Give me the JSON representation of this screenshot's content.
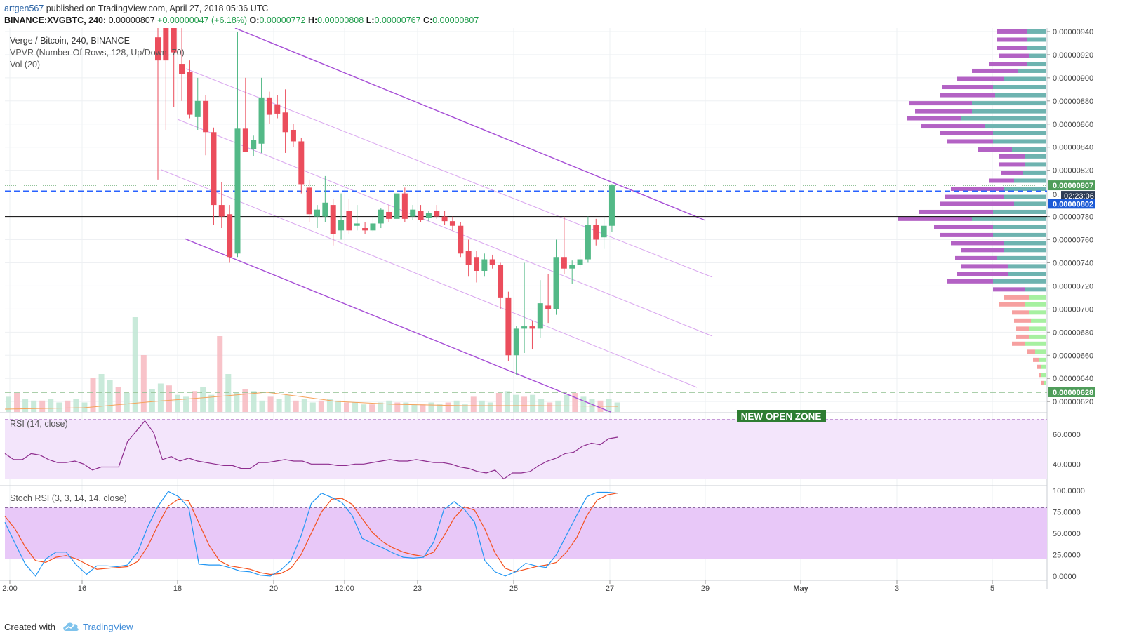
{
  "header": {
    "author": "artgen567",
    "published_text": " published on TradingView.com, April 27, 2018 05:36 UTC",
    "symbol": "BINANCE:XVGBTC, 240",
    "last": "0.00000807",
    "change": "+0.00000047 (+6.18%)",
    "o_label": "O:",
    "o_value": "0.00000772",
    "h_label": "H:",
    "h_value": "0.00000808",
    "l_label": "L:",
    "l_value": "0.00000767",
    "c_label": "C:",
    "c_value": "0.00000807"
  },
  "legend": {
    "title": "Verge / Bitcoin, 240, BINANCE",
    "vpvr": "VPVR (Number Of Rows, 128, Up/Down, 70)",
    "vol": "Vol (20)",
    "rsi": "RSI (14, close)",
    "stoch": "Stoch RSI (3, 3, 14, 14, close)"
  },
  "annotation": "NEW OPEN ZONE",
  "footer": {
    "created": "Created with",
    "brand": "TradingView"
  },
  "colors": {
    "up": "#53b987",
    "down": "#eb4d5c",
    "channel": "#a64ed6",
    "channel_inner": "#d9a6ef",
    "rsi": "#8e2d8e",
    "rsi_band": "#f3e5fb",
    "stoch_k": "#2196f3",
    "stoch_d": "#f4511e",
    "stoch_band": "#e8c8f8",
    "vpvr_up": "#6eb3b0",
    "vpvr_down": "#b362c4",
    "vpvr_up_low": "#a6f0a0",
    "vpvr_down_low": "#f6a0a0",
    "dash_blue": "#2962ff",
    "dash_green": "#8fbf8f",
    "label_green": "#4f9d5a",
    "label_blue": "#1c5ad6",
    "label_dark": "#2e3d55",
    "zone_bg": "#2e7d32"
  },
  "chart_data": {
    "type": "candlestick",
    "price_axis": {
      "ticks": [
        "0.00000940",
        "0.00000920",
        "0.00000900",
        "0.00000880",
        "0.00000860",
        "0.00000840",
        "0.00000820",
        "0.00000780",
        "0.00000760",
        "0.00000740",
        "0.00000720",
        "0.00000700",
        "0.00000680",
        "0.00000660",
        "0.00000640",
        "0.00000620"
      ],
      "ylim": [
        6.11e-06,
        9.43e-06
      ]
    },
    "time_axis": {
      "labels": [
        "2:00",
        "16",
        "18",
        "20",
        "12:00",
        "23",
        "25",
        "27",
        "29",
        "May",
        "3",
        "5"
      ]
    },
    "price_labels": {
      "last": "0.00000807",
      "countdown": "02:23:06",
      "blue_level": "0.00000802",
      "green_level": "0.00000628",
      "hidden_label": "0."
    },
    "levels": {
      "blue_dashed": 8.02e-06,
      "green_dashed": 6.28e-06,
      "black_line": 7.8e-06,
      "dotted_last": 8.07e-06
    },
    "candles": [
      {
        "o": 9.35e-06,
        "h": 9.43e-06,
        "l": 8.12e-06,
        "c": 9.15e-06
      },
      {
        "o": 9.45e-06,
        "h": 9.5e-06,
        "l": 8.55e-06,
        "c": 9.15e-06
      },
      {
        "o": 9.45e-06,
        "h": 9.5e-06,
        "l": 8.75e-06,
        "c": 9.22e-06
      },
      {
        "o": 9.12e-06,
        "h": 9.5e-06,
        "l": 8.8e-06,
        "c": 9.03e-06
      },
      {
        "o": 9.05e-06,
        "h": 9.15e-06,
        "l": 8.65e-06,
        "c": 8.68e-06
      },
      {
        "o": 8.66e-06,
        "h": 9e-06,
        "l": 8.55e-06,
        "c": 8.8e-06
      },
      {
        "o": 8.8e-06,
        "h": 8.85e-06,
        "l": 8.33e-06,
        "c": 8.53e-06
      },
      {
        "o": 8.53e-06,
        "h": 8.57e-06,
        "l": 7.73e-06,
        "c": 7.9e-06
      },
      {
        "o": 7.9e-06,
        "h": 8.1e-06,
        "l": 7.7e-06,
        "c": 7.8e-06
      },
      {
        "o": 7.82e-06,
        "h": 7.9e-06,
        "l": 7.4e-06,
        "c": 7.45e-06
      },
      {
        "o": 7.48e-06,
        "h": 9.4e-06,
        "l": 7.45e-06,
        "c": 8.56e-06
      },
      {
        "o": 8.56e-06,
        "h": 9e-06,
        "l": 8.38e-06,
        "c": 8.36e-06
      },
      {
        "o": 8.38e-06,
        "h": 8.5e-06,
        "l": 8.32e-06,
        "c": 8.46e-06
      },
      {
        "o": 8.43e-06,
        "h": 9e-06,
        "l": 8.35e-06,
        "c": 8.83e-06
      },
      {
        "o": 8.83e-06,
        "h": 8.88e-06,
        "l": 8.6e-06,
        "c": 8.68e-06
      },
      {
        "o": 8.77e-06,
        "h": 8.85e-06,
        "l": 8.65e-06,
        "c": 8.69e-06
      },
      {
        "o": 8.7e-06,
        "h": 8.9e-06,
        "l": 8.35e-06,
        "c": 8.53e-06
      },
      {
        "o": 8.55e-06,
        "h": 8.6e-06,
        "l": 8.4e-06,
        "c": 8.45e-06
      },
      {
        "o": 8.45e-06,
        "h": 8.48e-06,
        "l": 8e-06,
        "c": 8.08e-06
      },
      {
        "o": 8.05e-06,
        "h": 8.12e-06,
        "l": 7.75e-06,
        "c": 7.82e-06
      },
      {
        "o": 7.8e-06,
        "h": 7.9e-06,
        "l": 7.7e-06,
        "c": 7.86e-06
      },
      {
        "o": 7.8e-06,
        "h": 8.15e-06,
        "l": 7.75e-06,
        "c": 7.92e-06
      },
      {
        "o": 7.9e-06,
        "h": 7.95e-06,
        "l": 7.55e-06,
        "c": 7.65e-06
      },
      {
        "o": 7.68e-06,
        "h": 8e-06,
        "l": 7.6e-06,
        "c": 7.77e-06
      },
      {
        "o": 7.85e-06,
        "h": 7.95e-06,
        "l": 7.65e-06,
        "c": 7.68e-06
      },
      {
        "o": 7.72e-06,
        "h": 7.9e-06,
        "l": 7.68e-06,
        "c": 7.74e-06
      },
      {
        "o": 7.7e-06,
        "h": 7.75e-06,
        "l": 7.65e-06,
        "c": 7.68e-06
      },
      {
        "o": 7.68e-06,
        "h": 7.8e-06,
        "l": 7.67e-06,
        "c": 7.74e-06
      },
      {
        "o": 7.74e-06,
        "h": 7.87e-06,
        "l": 7.7e-06,
        "c": 7.86e-06
      },
      {
        "o": 7.84e-06,
        "h": 7.9e-06,
        "l": 7.75e-06,
        "c": 7.78e-06
      },
      {
        "o": 7.78e-06,
        "h": 8.18e-06,
        "l": 7.75e-06,
        "c": 8e-06
      },
      {
        "o": 8e-06,
        "h": 8.05e-06,
        "l": 7.75e-06,
        "c": 7.78e-06
      },
      {
        "o": 7.8e-06,
        "h": 7.9e-06,
        "l": 7.77e-06,
        "c": 7.86e-06
      },
      {
        "o": 7.85e-06,
        "h": 7.9e-06,
        "l": 7.75e-06,
        "c": 7.77e-06
      },
      {
        "o": 7.79e-06,
        "h": 7.85e-06,
        "l": 7.76e-06,
        "c": 7.83e-06
      },
      {
        "o": 7.85e-06,
        "h": 7.9e-06,
        "l": 7.78e-06,
        "c": 7.8e-06
      },
      {
        "o": 7.8e-06,
        "h": 7.85e-06,
        "l": 7.73e-06,
        "c": 7.76e-06
      },
      {
        "o": 7.76e-06,
        "h": 7.8e-06,
        "l": 7.68e-06,
        "c": 7.72e-06
      },
      {
        "o": 7.72e-06,
        "h": 7.75e-06,
        "l": 7.45e-06,
        "c": 7.48e-06
      },
      {
        "o": 7.5e-06,
        "h": 7.6e-06,
        "l": 7.28e-06,
        "c": 7.38e-06
      },
      {
        "o": 7.45e-06,
        "h": 7.5e-06,
        "l": 7.23e-06,
        "c": 7.33e-06
      },
      {
        "o": 7.33e-06,
        "h": 7.48e-06,
        "l": 7.28e-06,
        "c": 7.43e-06
      },
      {
        "o": 7.43e-06,
        "h": 7.47e-06,
        "l": 7.35e-06,
        "c": 7.38e-06
      },
      {
        "o": 7.38e-06,
        "h": 7.4e-06,
        "l": 7e-06,
        "c": 7.1e-06
      },
      {
        "o": 7.1e-06,
        "h": 7.15e-06,
        "l": 6.55e-06,
        "c": 6.6e-06
      },
      {
        "o": 6.6e-06,
        "h": 6.85e-06,
        "l": 6.43e-06,
        "c": 6.83e-06
      },
      {
        "o": 6.83e-06,
        "h": 7.4e-06,
        "l": 6.62e-06,
        "c": 6.85e-06
      },
      {
        "o": 6.85e-06,
        "h": 6.9e-06,
        "l": 6.65e-06,
        "c": 6.83e-06
      },
      {
        "o": 6.83e-06,
        "h": 7.25e-06,
        "l": 6.75e-06,
        "c": 7.05e-06
      },
      {
        "o": 7.03e-06,
        "h": 7.3e-06,
        "l": 6.88e-06,
        "c": 7e-06
      },
      {
        "o": 7e-06,
        "h": 7.6e-06,
        "l": 6.95e-06,
        "c": 7.45e-06
      },
      {
        "o": 7.45e-06,
        "h": 7.8e-06,
        "l": 7.3e-06,
        "c": 7.35e-06
      },
      {
        "o": 7.35e-06,
        "h": 7.42e-06,
        "l": 7.22e-06,
        "c": 7.38e-06
      },
      {
        "o": 7.38e-06,
        "h": 7.52e-06,
        "l": 7.35e-06,
        "c": 7.43e-06
      },
      {
        "o": 7.43e-06,
        "h": 7.8e-06,
        "l": 7.4e-06,
        "c": 7.73e-06
      },
      {
        "o": 7.73e-06,
        "h": 7.78e-06,
        "l": 7.55e-06,
        "c": 7.6e-06
      },
      {
        "o": 7.62e-06,
        "h": 7.8e-06,
        "l": 7.52e-06,
        "c": 7.72e-06
      },
      {
        "o": 7.72e-06,
        "h": 8.08e-06,
        "l": 7.67e-06,
        "c": 8.07e-06
      }
    ],
    "volume": [
      8,
      10,
      7,
      6,
      6,
      7,
      5,
      6,
      7,
      5,
      18,
      20,
      17,
      13,
      10,
      50,
      30,
      12,
      15,
      14,
      9,
      8,
      11,
      13,
      9,
      40,
      20,
      10,
      12,
      11,
      6,
      8,
      7,
      9,
      6,
      7,
      5,
      6,
      7,
      6,
      5,
      5,
      4,
      4,
      5,
      6,
      5,
      5,
      4,
      4,
      5,
      4,
      5,
      6,
      4,
      8,
      6,
      5,
      10,
      11,
      9,
      8,
      9,
      7,
      5,
      6,
      9,
      10,
      8,
      7,
      6,
      7,
      5
    ],
    "rsi": {
      "ylim": [
        26,
        74
      ],
      "ticks": [
        "60.0000",
        "40.0000"
      ],
      "band": [
        30,
        70
      ],
      "values": [
        47,
        43,
        43,
        47,
        46,
        43,
        41,
        41,
        42,
        40,
        36,
        38,
        38,
        38,
        55,
        62,
        69,
        61,
        43,
        45,
        42,
        44,
        42,
        41,
        40,
        39,
        39,
        37,
        37,
        41,
        41,
        42,
        43,
        42,
        42,
        40,
        40,
        40,
        39,
        39,
        40,
        40,
        41,
        42,
        43,
        42,
        42,
        43,
        42,
        41,
        41,
        40,
        38,
        37,
        35,
        34,
        36,
        30,
        34,
        34,
        35,
        39,
        42,
        44,
        47,
        48,
        52,
        54,
        53,
        57,
        58
      ]
    },
    "stoch_rsi": {
      "ylim": [
        -5,
        105
      ],
      "ticks": [
        "100.0000",
        "75.0000",
        "50.0000",
        "25.0000",
        "0.0000"
      ],
      "band": [
        20,
        80
      ],
      "k": [
        63,
        38,
        14,
        0,
        20,
        28,
        28,
        13,
        2,
        12,
        12,
        11,
        13,
        28,
        58,
        82,
        99,
        93,
        80,
        14,
        13,
        13,
        10,
        6,
        5,
        1,
        0,
        7,
        18,
        47,
        85,
        97,
        92,
        86,
        71,
        44,
        38,
        33,
        27,
        22,
        21,
        22,
        40,
        78,
        87,
        78,
        63,
        18,
        5,
        0,
        5,
        15,
        12,
        10,
        25,
        48,
        71,
        93,
        98,
        98,
        97
      ],
      "d": [
        70,
        55,
        34,
        18,
        16,
        22,
        24,
        20,
        14,
        8,
        9,
        10,
        11,
        17,
        35,
        60,
        82,
        90,
        88,
        62,
        36,
        18,
        12,
        10,
        8,
        4,
        2,
        3,
        9,
        25,
        50,
        75,
        90,
        91,
        84,
        67,
        51,
        40,
        33,
        28,
        25,
        23,
        28,
        47,
        68,
        81,
        77,
        55,
        27,
        9,
        5,
        8,
        11,
        13,
        16,
        28,
        45,
        71,
        89,
        95,
        97
      ]
    },
    "vpvr": {
      "rows": [
        [
          9.4e-06,
          14,
          9
        ],
        [
          9.33e-06,
          14,
          9
        ],
        [
          9.26e-06,
          14,
          9
        ],
        [
          9.19e-06,
          14,
          8
        ],
        [
          9.12e-06,
          18,
          9
        ],
        [
          9.06e-06,
          22,
          13
        ],
        [
          8.99e-06,
          22,
          20
        ],
        [
          8.92e-06,
          24,
          25
        ],
        [
          8.85e-06,
          26,
          24
        ],
        [
          8.78e-06,
          30,
          35
        ],
        [
          8.71e-06,
          27,
          35
        ],
        [
          8.65e-06,
          26,
          40
        ],
        [
          8.58e-06,
          30,
          29
        ],
        [
          8.52e-06,
          25,
          25
        ],
        [
          8.45e-06,
          22,
          25
        ],
        [
          8.38e-06,
          16,
          16
        ],
        [
          8.32e-06,
          12,
          10
        ],
        [
          8.25e-06,
          12,
          10
        ],
        [
          8.18e-06,
          10,
          11
        ],
        [
          8.11e-06,
          12,
          15
        ],
        [
          8.04e-06,
          25,
          20
        ],
        [
          7.97e-06,
          28,
          20
        ],
        [
          7.91e-06,
          35,
          15
        ],
        [
          7.84e-06,
          35,
          25
        ],
        [
          7.78e-06,
          35,
          35
        ],
        [
          7.71e-06,
          28,
          25
        ],
        [
          7.64e-06,
          25,
          25
        ],
        [
          7.57e-06,
          25,
          20
        ],
        [
          7.51e-06,
          20,
          20
        ],
        [
          7.44e-06,
          20,
          23
        ],
        [
          7.37e-06,
          22,
          18
        ],
        [
          7.3e-06,
          24,
          18
        ],
        [
          7.24e-06,
          22,
          25
        ],
        [
          7.17e-06,
          15,
          10
        ],
        [
          7.1e-06,
          12,
          8
        ],
        [
          7.04e-06,
          12,
          10
        ],
        [
          6.97e-06,
          8,
          8
        ],
        [
          6.9e-06,
          8,
          7
        ],
        [
          6.83e-06,
          6,
          8
        ],
        [
          6.76e-06,
          6,
          8
        ],
        [
          6.7e-06,
          6,
          10
        ],
        [
          6.63e-06,
          4,
          5
        ],
        [
          6.56e-06,
          3,
          3
        ],
        [
          6.5e-06,
          2,
          2
        ],
        [
          6.43e-06,
          1,
          2
        ],
        [
          6.36e-06,
          1,
          1
        ]
      ]
    }
  }
}
